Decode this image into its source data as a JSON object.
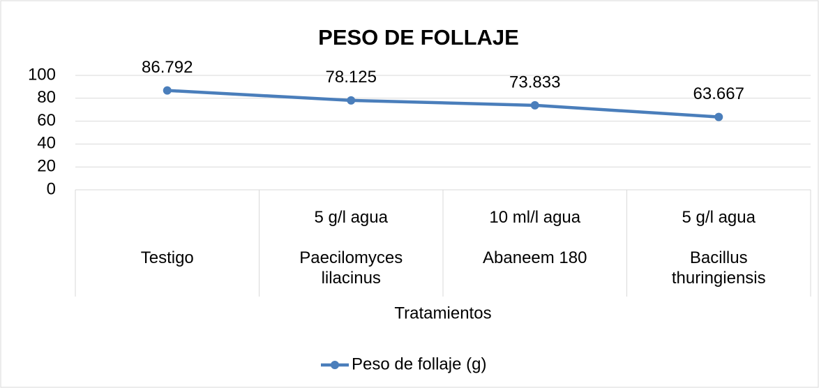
{
  "chart_data": {
    "type": "line",
    "title": "PESO DE FOLLAJE",
    "categories": [
      "Testigo",
      "Paecilomyces lilacinus",
      "Abaneem 180",
      "Bacillus thuringiensis"
    ],
    "category_doses": [
      null,
      "5 g/l agua",
      "10 ml/l agua",
      "5 g/l agua"
    ],
    "x_label": "Tratamientos",
    "series": [
      {
        "name": "Peso de follaje (g)",
        "color": "#4a7ebb",
        "values": [
          86.792,
          78.125,
          73.833,
          63.667
        ]
      }
    ],
    "ylim": [
      0,
      100
    ],
    "yticks": [
      0,
      20,
      40,
      60,
      80,
      100
    ],
    "grid": true,
    "legend": "bottom"
  }
}
